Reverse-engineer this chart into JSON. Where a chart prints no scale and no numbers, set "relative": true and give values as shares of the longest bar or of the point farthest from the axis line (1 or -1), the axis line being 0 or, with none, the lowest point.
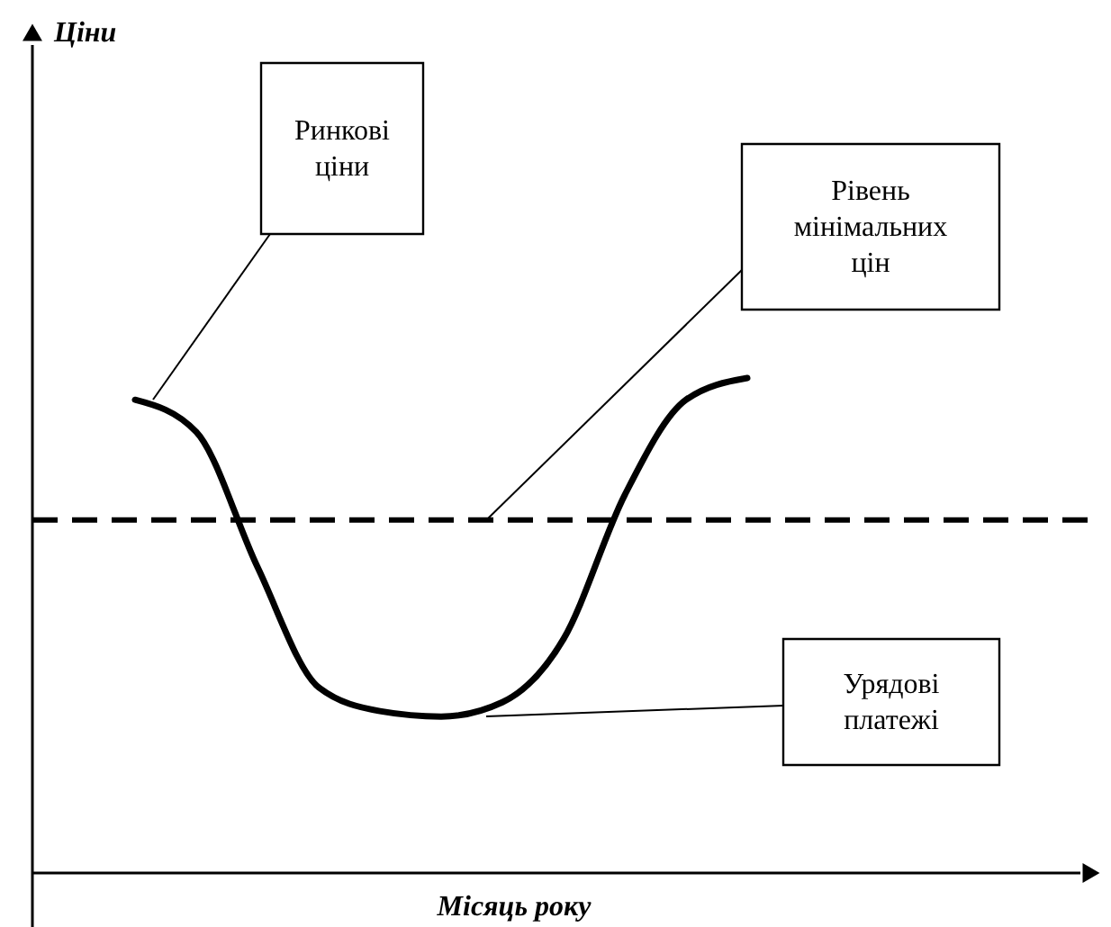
{
  "chart_data": {
    "type": "line",
    "relative": true,
    "xlabel": "Місяць року",
    "line_style": "solid",
    "categories": [
      null,
      null,
      null,
      null,
      null,
      null,
      null,
      null,
      null,
      null,
      null,
      null,
      null,
      null,
      null,
      null,
      null
    ],
    "series": [
      {
        "color": "#000000",
        "values": [
          null,
          0.956,
          0.891,
          0.618,
          0.375,
          0.327,
          0.316,
          0.345,
          0.473,
          0.764,
          0.956,
          1.0,
          null,
          null,
          null,
          null,
          null
        ]
      }
    ],
    "ref_lines": [
      {
        "axis": "y",
        "value": 0.713,
        "label": "Рівень мінімальних цін",
        "color": "#000000",
        "line_style": "dashed"
      }
    ],
    "annotations": [
      "Ціни",
      "Ринкові ціни",
      "Урядові платежі"
    ]
  }
}
